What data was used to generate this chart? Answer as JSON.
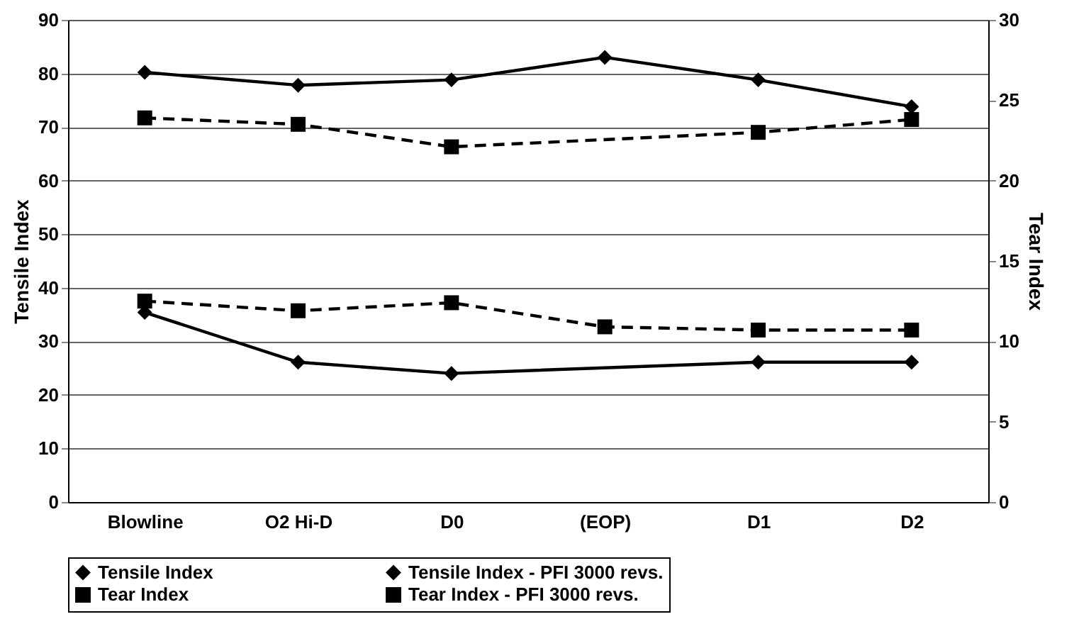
{
  "chart_data": {
    "type": "line",
    "categories": [
      "Blowline",
      "O2 Hi-D",
      "D0",
      "(EOP)",
      "D1",
      "D2"
    ],
    "ylabel": "Tensile Index",
    "y2label": "Tear Index",
    "ylim": [
      0,
      90
    ],
    "yticks": [
      0,
      10,
      20,
      30,
      40,
      50,
      60,
      70,
      80,
      90
    ],
    "y2lim": [
      0,
      30
    ],
    "y2ticks": [
      0,
      5,
      10,
      15,
      20,
      25,
      30
    ],
    "grid": "y",
    "legend": "bottom",
    "series": [
      {
        "name": "Tensile Index",
        "color": "#000000",
        "marker": "diamond",
        "line_style": "solid",
        "values": [
          35.4,
          26.1,
          24,
          null,
          26.1,
          26.1
        ]
      },
      {
        "name": "Tensile Index - PFI 3000 revs.",
        "color": "#000000",
        "marker": "diamond",
        "line_style": "solid",
        "values": [
          80.2,
          77.8,
          78.8,
          83,
          78.8,
          73.8
        ]
      },
      {
        "name": "Tear Index",
        "color": "#000000",
        "marker": "square",
        "line_style": "dashed",
        "axis": "y2",
        "values": [
          23.9,
          23.5,
          22.1,
          null,
          23.0,
          23.8
        ]
      },
      {
        "name": "Tear Index - PFI 3000 revs.",
        "color": "#000000",
        "marker": "square",
        "line_style": "dashed",
        "axis": "y2",
        "values": [
          12.5,
          11.9,
          12.4,
          10.9,
          10.7,
          10.7
        ]
      }
    ]
  }
}
